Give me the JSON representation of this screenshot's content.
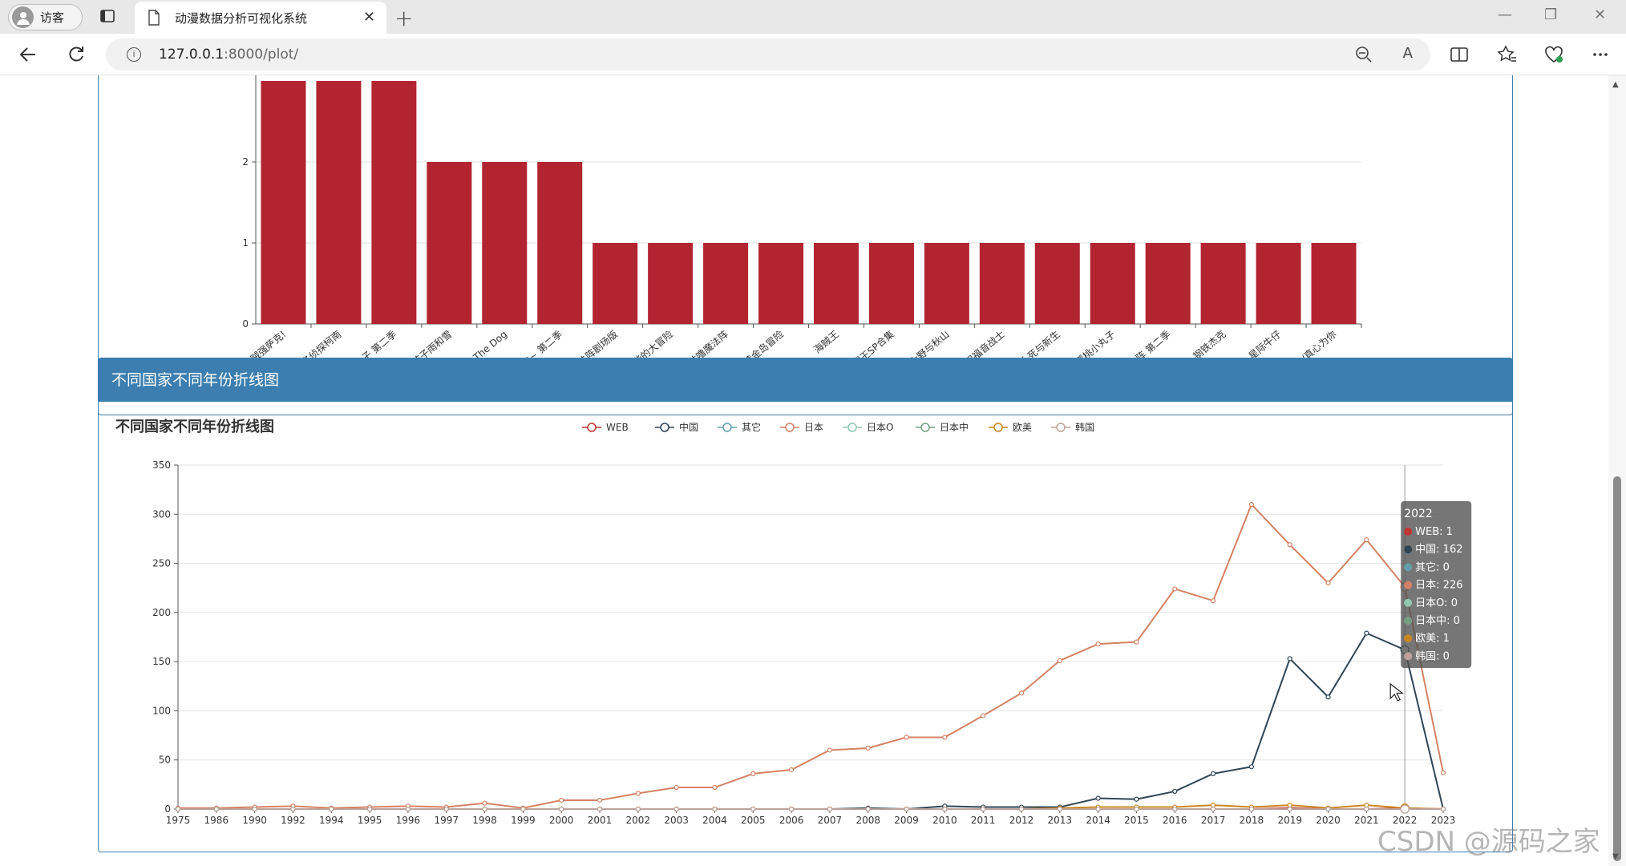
{
  "browser": {
    "profile_label": "访客",
    "tab_title": "动漫数据分析可视化系统",
    "tab_close": "✕",
    "new_tab": "+",
    "url_host": "127.0.0.1",
    "url_path": ":8000/plot/",
    "window_controls": [
      "—",
      "❐",
      "✕"
    ],
    "info_icon": "i",
    "read_aloud": "A"
  },
  "bar_panel": {
    "chart_data": {
      "type": "bar",
      "color": "#b22430",
      "categories": [
        "超...海贼强萨克!",
        "名侦探柯南",
        "...小丸子 第二季",
        "...的孩子雨和雪",
        "...der The Dog",
        "...下去~ 第二季",
        "...魔法阵剧场版",
        "...的和谐的大冒险",
        "...噜咕噜魔法阵",
        "...版 黄金岛冒险",
        "海贼王",
        "海贼王SP合集",
        "...版 大野与秋山",
        "...新世纪福音战士",
        "...场版 死与新生",
        "樱桃小丸子",
        "...魔法阵 第二季",
        "钢铁杰克",
        "星际牛仔",
        "...Air/真心为你"
      ],
      "values": [
        3,
        3,
        3,
        2,
        2,
        2,
        1,
        1,
        1,
        1,
        1,
        1,
        1,
        1,
        1,
        1,
        1,
        1,
        1,
        1
      ],
      "y_ticks": [
        "0",
        "1",
        "2"
      ]
    }
  },
  "line_panel": {
    "header": "不同国家不同年份折线图",
    "chart_title": "不同国家不同年份折线图",
    "chart_data": {
      "type": "line",
      "x": [
        "1975",
        "1986",
        "1990",
        "1992",
        "1994",
        "1995",
        "1996",
        "1997",
        "1998",
        "1999",
        "2000",
        "2001",
        "2002",
        "2003",
        "2004",
        "2005",
        "2006",
        "2007",
        "2008",
        "2009",
        "2010",
        "2011",
        "2012",
        "2013",
        "2014",
        "2015",
        "2016",
        "2017",
        "2018",
        "2019",
        "2020",
        "2021",
        "2022",
        "2023"
      ],
      "ylim": [
        0,
        350
      ],
      "y_ticks": [
        "0",
        "50",
        "100",
        "150",
        "200",
        "250",
        "300",
        "350"
      ],
      "series": [
        {
          "name": "WEB",
          "color": "#c23531",
          "values": [
            0,
            0,
            0,
            0,
            0,
            0,
            0,
            0,
            0,
            0,
            0,
            0,
            0,
            0,
            0,
            0,
            0,
            0,
            0,
            0,
            0,
            0,
            0,
            0,
            0,
            0,
            0,
            0,
            0,
            1,
            0,
            0,
            1,
            0
          ]
        },
        {
          "name": "中国",
          "color": "#2f4554",
          "values": [
            0,
            0,
            0,
            0,
            0,
            0,
            0,
            0,
            0,
            0,
            0,
            0,
            0,
            0,
            0,
            0,
            0,
            0,
            1,
            0,
            3,
            2,
            2,
            2,
            11,
            10,
            18,
            36,
            43,
            153,
            114,
            179,
            162,
            0
          ]
        },
        {
          "name": "其它",
          "color": "#61a0a8",
          "values": [
            0,
            0,
            0,
            0,
            0,
            0,
            0,
            0,
            0,
            0,
            0,
            0,
            0,
            0,
            0,
            0,
            0,
            0,
            0,
            0,
            0,
            0,
            0,
            0,
            0,
            0,
            0,
            0,
            0,
            0,
            0,
            0,
            0,
            0
          ]
        },
        {
          "name": "日本",
          "color": "#d48265",
          "values": [
            1,
            1,
            2,
            3,
            1,
            2,
            3,
            2,
            6,
            1,
            9,
            9,
            16,
            22,
            22,
            36,
            40,
            60,
            62,
            73,
            73,
            95,
            118,
            151,
            168,
            170,
            224,
            212,
            310,
            269,
            230,
            274,
            226,
            37
          ]
        },
        {
          "name": "日本O",
          "color": "#91c7ae",
          "values": [
            0,
            0,
            0,
            0,
            0,
            0,
            0,
            0,
            0,
            0,
            0,
            0,
            0,
            0,
            0,
            0,
            0,
            0,
            0,
            0,
            0,
            0,
            0,
            0,
            0,
            0,
            0,
            0,
            0,
            0,
            0,
            0,
            0,
            0
          ]
        },
        {
          "name": "日本中",
          "color": "#749f83",
          "values": [
            0,
            0,
            0,
            0,
            0,
            0,
            0,
            0,
            0,
            0,
            0,
            0,
            0,
            0,
            0,
            0,
            0,
            0,
            0,
            0,
            0,
            0,
            0,
            0,
            0,
            0,
            0,
            0,
            0,
            0,
            0,
            0,
            0,
            0
          ]
        },
        {
          "name": "欧美",
          "color": "#ca8622",
          "values": [
            0,
            0,
            0,
            0,
            0,
            0,
            0,
            0,
            0,
            0,
            0,
            0,
            0,
            0,
            0,
            0,
            0,
            0,
            0,
            0,
            0,
            0,
            0,
            1,
            2,
            2,
            2,
            4,
            2,
            4,
            1,
            4,
            1,
            0
          ]
        },
        {
          "name": "韩国",
          "color": "#bda29a",
          "values": [
            0,
            0,
            0,
            0,
            0,
            0,
            0,
            0,
            0,
            0,
            0,
            0,
            0,
            0,
            0,
            0,
            0,
            0,
            0,
            0,
            0,
            0,
            0,
            0,
            0,
            0,
            0,
            0,
            0,
            0,
            0,
            0,
            0,
            0
          ]
        }
      ]
    },
    "tooltip": {
      "title": "2022",
      "rows": [
        {
          "text": "WEB: 1",
          "color": "#c23531"
        },
        {
          "text": "中国: 162",
          "color": "#2f4554"
        },
        {
          "text": "其它: 0",
          "color": "#61a0a8"
        },
        {
          "text": "日本: 226",
          "color": "#d48265"
        },
        {
          "text": "日本O: 0",
          "color": "#91c7ae"
        },
        {
          "text": "日本中: 0",
          "color": "#749f83"
        },
        {
          "text": "欧美: 1",
          "color": "#ca8622"
        },
        {
          "text": "韩国: 0",
          "color": "#bda29a"
        }
      ]
    }
  },
  "watermark": "CSDN @源码之家"
}
